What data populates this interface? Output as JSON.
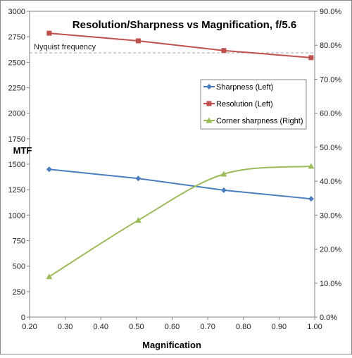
{
  "chart_data": {
    "type": "line",
    "title": "Resolution/Sharpness vs Magnification, f/5.6",
    "xlabel": "Magnification",
    "ylabel": "MTF",
    "y2label": "",
    "xlim": [
      0.2,
      1.0
    ],
    "xticks": [
      0.2,
      0.3,
      0.4,
      0.5,
      0.6,
      0.7,
      0.8,
      0.9,
      1.0
    ],
    "xtick_labels": [
      "0.20",
      "0.30",
      "0.40",
      "0.50",
      "0.60",
      "0.70",
      "0.80",
      "0.90",
      "1.00"
    ],
    "ylim": [
      0,
      3000
    ],
    "yticks": [
      0,
      250,
      500,
      750,
      1000,
      1250,
      1500,
      1750,
      2000,
      2250,
      2500,
      2750,
      3000
    ],
    "ytick_labels": [
      "0",
      "250",
      "500",
      "750",
      "1000",
      "1250",
      "1500",
      "1750",
      "2000",
      "2250",
      "2500",
      "2750",
      "3000"
    ],
    "y2lim": [
      0,
      90
    ],
    "y2ticks": [
      0,
      10,
      20,
      30,
      40,
      50,
      60,
      70,
      80,
      90
    ],
    "y2tick_labels": [
      "0.0%",
      "10.0%",
      "20.0%",
      "30.0%",
      "40.0%",
      "50.0%",
      "60.0%",
      "70.0%",
      "80.0%",
      "90.0%"
    ],
    "grid": false,
    "legend_position": "right",
    "reference_line": {
      "label": "Nyquist frequency",
      "value": 2592,
      "axis": "left",
      "color": "#a6a6a6"
    },
    "series": [
      {
        "name": "Sharpness (Left)",
        "axis": "left",
        "marker": "diamond",
        "color": "#4a7ebf",
        "x": [
          0.255,
          0.505,
          0.745,
          0.99
        ],
        "y": [
          1450,
          1360,
          1245,
          1160
        ]
      },
      {
        "name": "Resolution (Left)",
        "axis": "left",
        "marker": "square",
        "color": "#c0504d",
        "x": [
          0.255,
          0.505,
          0.745,
          0.99
        ],
        "y": [
          2785,
          2710,
          2615,
          2545
        ]
      },
      {
        "name": "Corner sharpness (Right)",
        "axis": "right",
        "marker": "triangle",
        "smooth": true,
        "color": "#9bbb59",
        "x": [
          0.255,
          0.505,
          0.745,
          0.99
        ],
        "y": [
          11.9,
          28.5,
          42.1,
          44.4
        ]
      }
    ]
  }
}
